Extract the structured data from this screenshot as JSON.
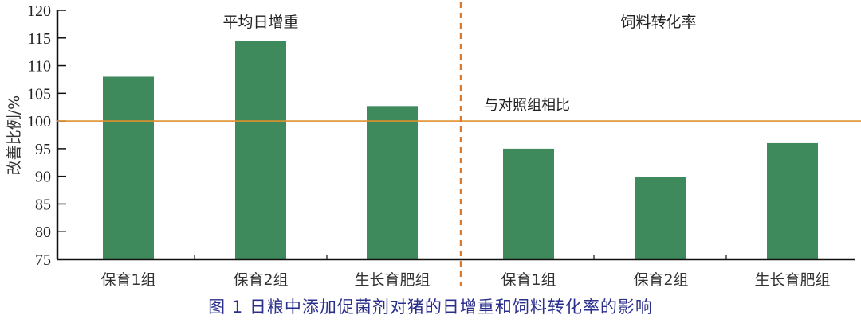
{
  "chart_data": {
    "type": "bar",
    "title": "图 1  日粮中添加促菌剂对猪的日增重和饲料转化率的影响",
    "ylabel": "改善比例/%",
    "xlabel": "",
    "ylim": [
      75,
      120
    ],
    "yticks": [
      75,
      80,
      85,
      90,
      95,
      100,
      105,
      110,
      115,
      120
    ],
    "grid": false,
    "legend": null,
    "panels": [
      {
        "title": "平均日增重",
        "categories": [
          "保育1组",
          "保育2组",
          "生长育肥组"
        ],
        "values": [
          108,
          114.5,
          102.7
        ]
      },
      {
        "title": "饲料转化率",
        "categories": [
          "保育1组",
          "保育2组",
          "生长育肥组"
        ],
        "values": [
          95,
          89.9,
          96
        ]
      }
    ],
    "categories": [
      "保育1组",
      "保育2组",
      "生长育肥组",
      "保育1组",
      "保育2组",
      "生长育肥组"
    ],
    "values": [
      108,
      114.5,
      102.7,
      95,
      89.9,
      96
    ],
    "reference_line": {
      "value": 100,
      "label": "与对照组相比"
    },
    "divider": "dashed vertical line between panels",
    "colors": {
      "bar": "#3f8a5c",
      "reference_line": "#e0902e",
      "divider": "#e07a2a",
      "caption": "#2b2f8c",
      "axis": "#111111"
    }
  },
  "caption": "图 1  日粮中添加促菌剂对猪的日增重和饲料转化率的影响"
}
